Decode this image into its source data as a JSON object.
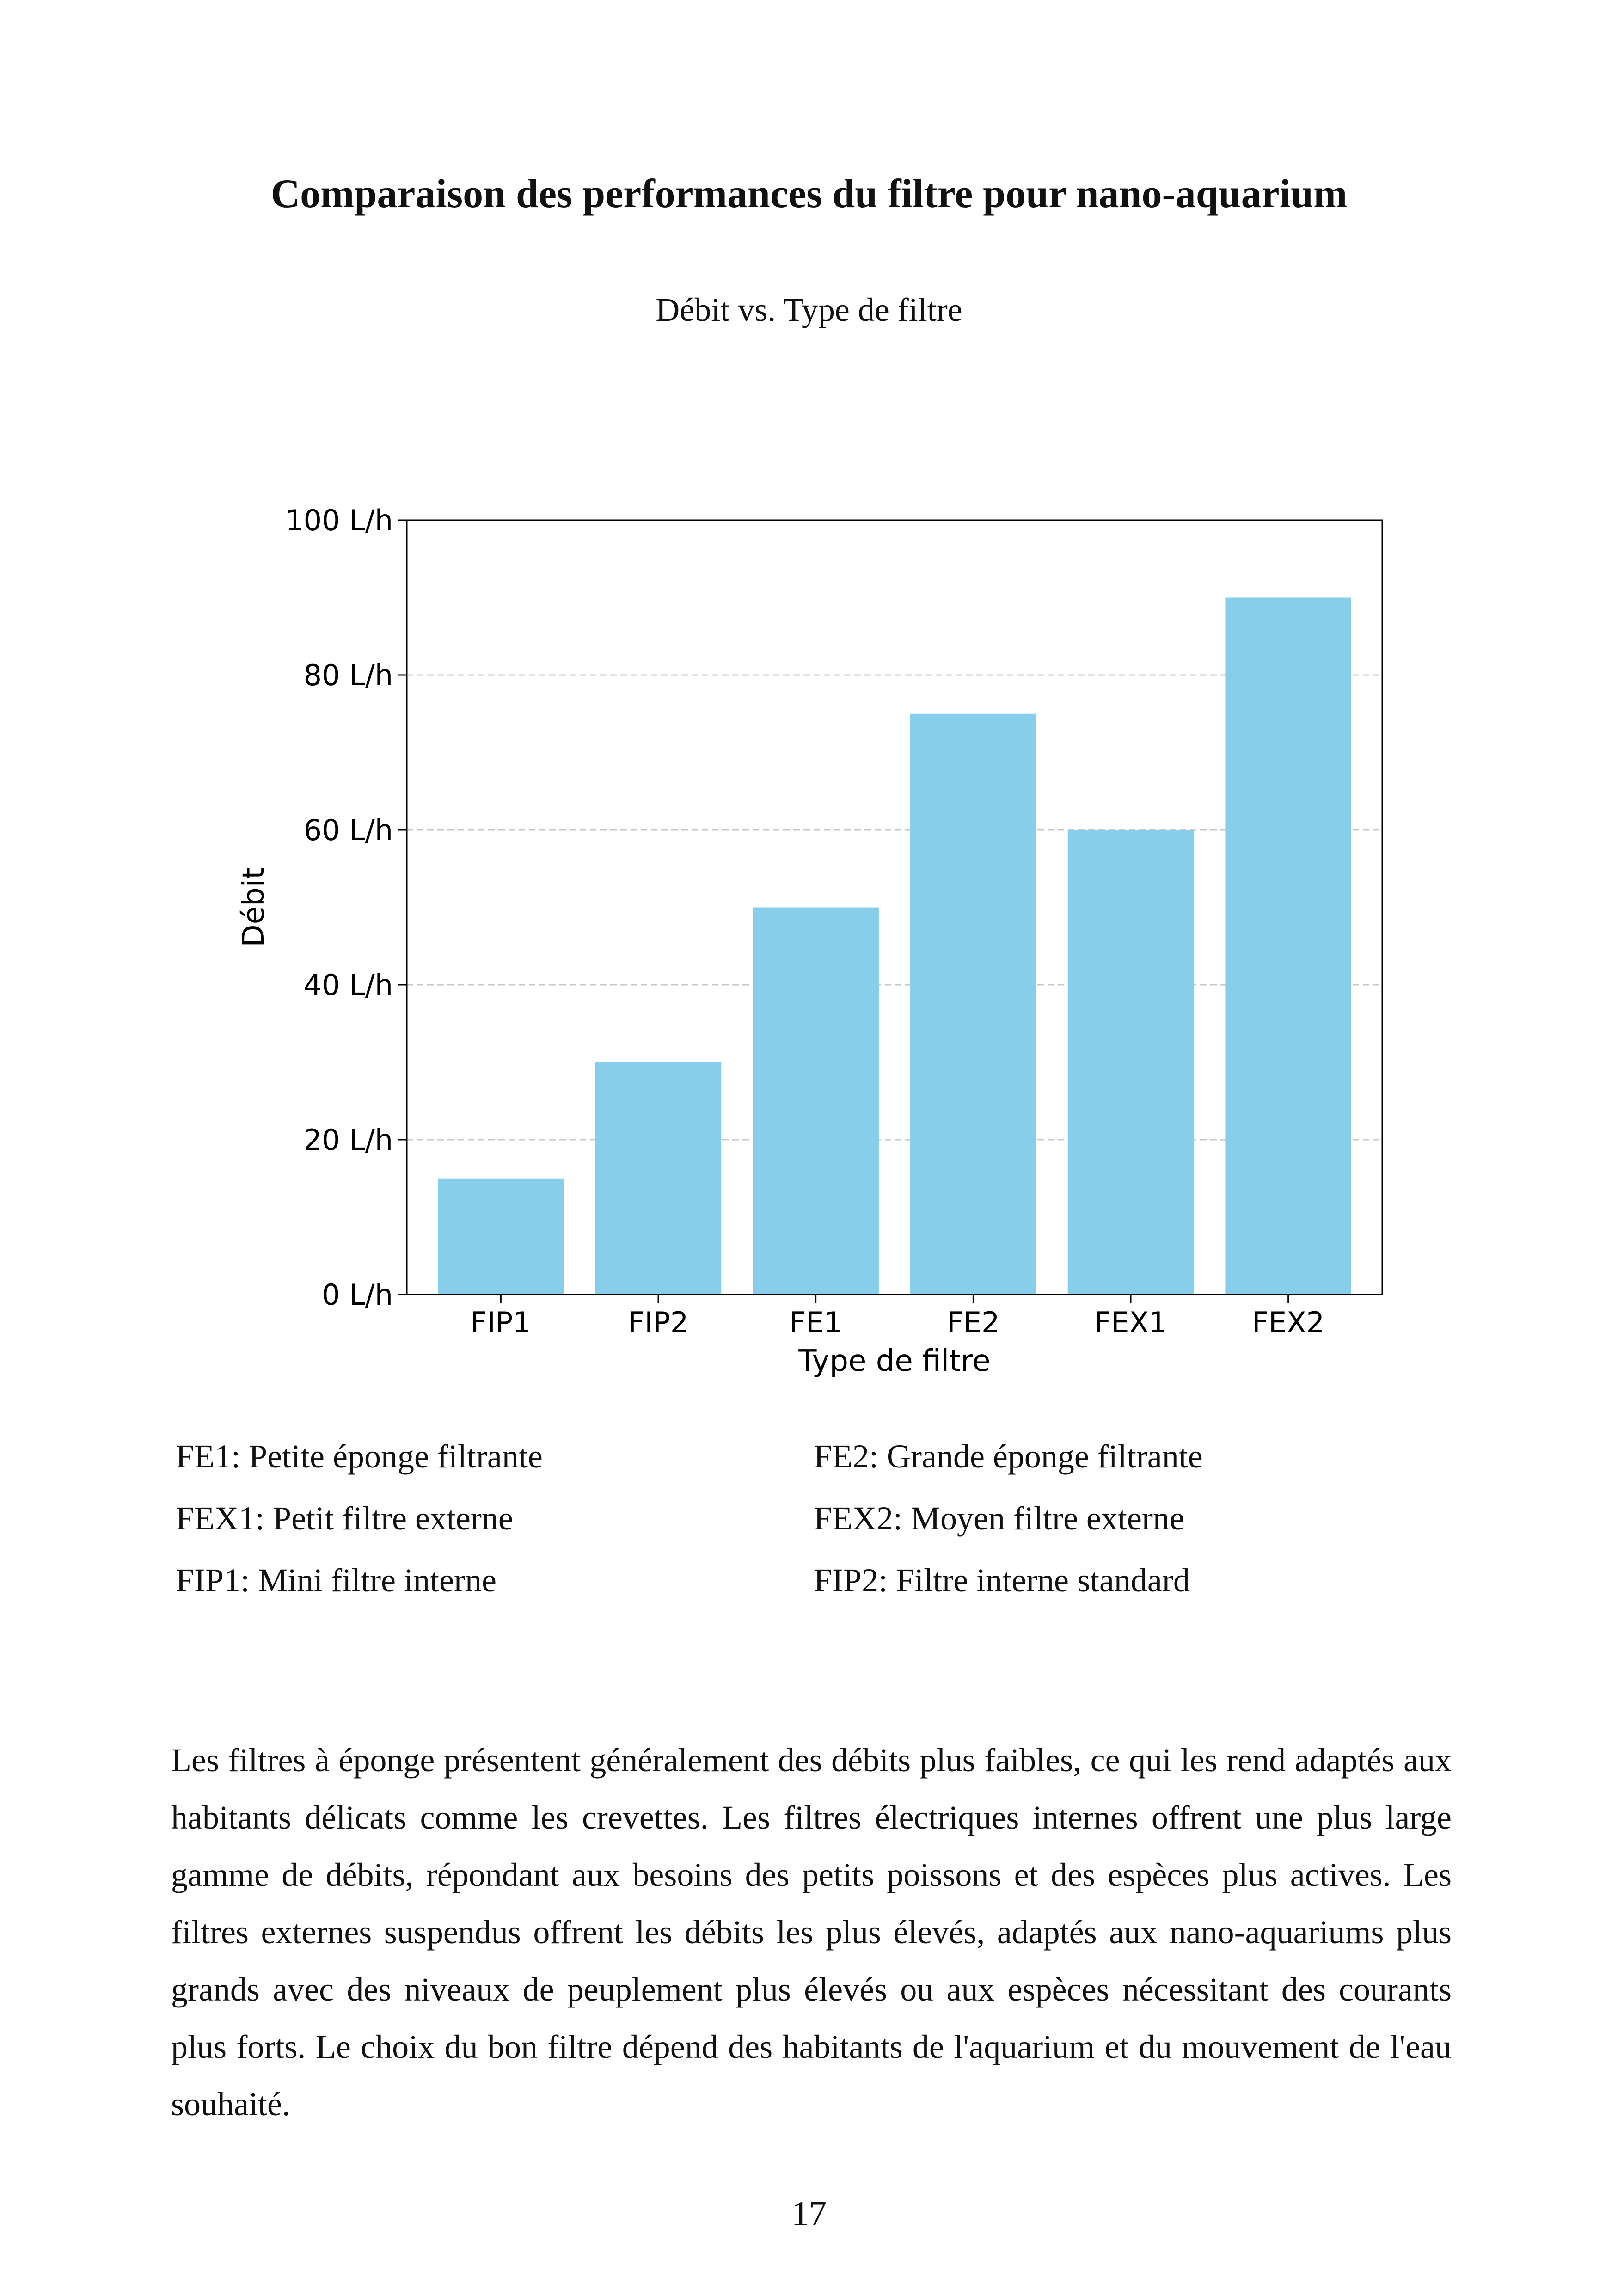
{
  "page": {
    "title": "Comparaison des performances du filtre pour nano-aquarium",
    "subtitle": "Débit vs. Type de filtre",
    "page_number": "17"
  },
  "chart_data": {
    "type": "bar",
    "categories": [
      "FIP1",
      "FIP2",
      "FE1",
      "FE2",
      "FEX1",
      "FEX2"
    ],
    "values": [
      15,
      30,
      50,
      75,
      60,
      90
    ],
    "xlabel": "Type de filtre",
    "ylabel": "Débit",
    "ylim": [
      0,
      100
    ],
    "yticks": [
      0,
      20,
      40,
      60,
      80,
      100
    ],
    "ytick_labels": [
      "0 L/h",
      "20 L/h",
      "40 L/h",
      "60 L/h",
      "80 L/h",
      "100 L/h"
    ],
    "bar_color": "#87ceeb",
    "grid": "horizontal dashed"
  },
  "legend": {
    "rows": [
      [
        "FE1: Petite éponge filtrante",
        "FE2: Grande éponge filtrante"
      ],
      [
        "FEX1: Petit filtre externe",
        "FEX2: Moyen filtre externe"
      ],
      [
        "FIP1: Mini filtre interne",
        "FIP2: Filtre interne standard"
      ]
    ]
  },
  "body": {
    "paragraph": "Les filtres à éponge présentent généralement des débits plus faibles, ce qui les rend adaptés aux habitants délicats comme les crevettes. Les filtres électriques internes offrent une plus large gamme de débits, répondant aux besoins des petits poissons et des espèces plus actives. Les filtres externes suspendus offrent les débits les plus élevés, adaptés aux nano-aquariums plus grands avec des niveaux de peuplement plus élevés ou aux espèces nécessitant des courants plus forts. Le choix du bon filtre dépend des habitants de l'aquarium et du mouvement de l'eau souhaité."
  }
}
